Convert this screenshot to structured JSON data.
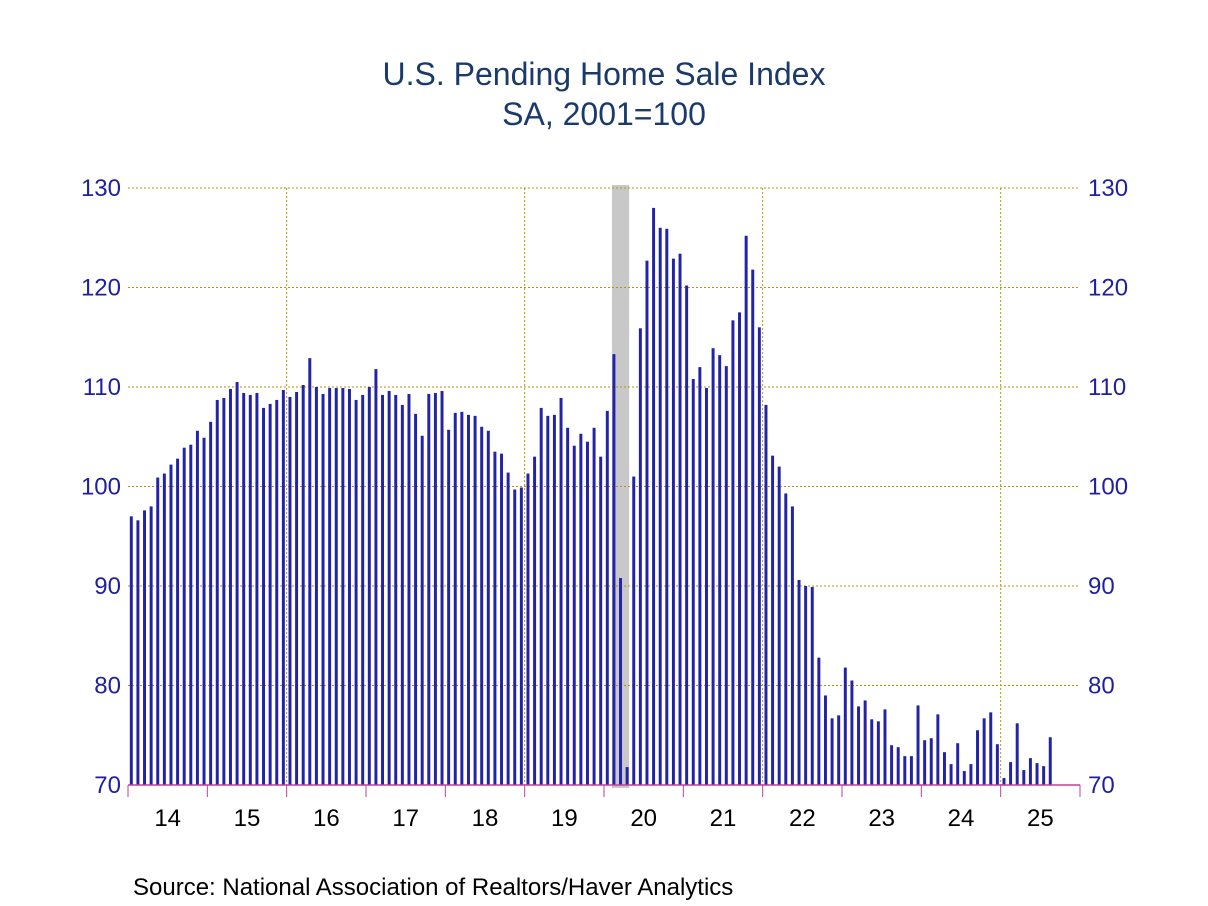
{
  "chart_data": {
    "type": "bar",
    "title": "U.S. Pending Home Sale Index",
    "subtitle": "SA, 2001=100",
    "source": "Source:  National Association of Realtors/Haver Analytics",
    "ylim": [
      70,
      130
    ],
    "y_ticks": [
      "70",
      "80",
      "90",
      "100",
      "110",
      "120",
      "130"
    ],
    "x_tick_labels": [
      "14",
      "15",
      "16",
      "17",
      "18",
      "19",
      "20",
      "21",
      "22",
      "23",
      "24",
      "25"
    ],
    "grid": true,
    "recession_shading": {
      "start": "2020-02",
      "end": "2020-04"
    },
    "series": [
      {
        "name": "Pending Home Sale Index",
        "start": "2014-01",
        "values": [
          97.0,
          96.6,
          97.6,
          98.0,
          100.9,
          101.3,
          102.2,
          102.8,
          103.9,
          104.2,
          105.6,
          104.9,
          106.5,
          108.7,
          108.9,
          109.8,
          110.5,
          109.4,
          109.2,
          109.4,
          107.9,
          108.3,
          108.7,
          109.7,
          109.0,
          109.5,
          110.2,
          112.9,
          110.0,
          109.3,
          109.9,
          109.9,
          109.9,
          109.8,
          108.7,
          109.2,
          110.0,
          111.8,
          109.2,
          109.6,
          109.2,
          108.2,
          109.3,
          107.3,
          105.1,
          109.3,
          109.4,
          109.6,
          105.7,
          107.4,
          107.5,
          107.2,
          107.1,
          106.0,
          105.6,
          103.5,
          103.3,
          101.4,
          99.7,
          99.9,
          101.3,
          103.0,
          107.9,
          107.1,
          107.2,
          108.9,
          105.9,
          104.1,
          105.3,
          104.5,
          105.9,
          103.0,
          107.6,
          113.3,
          90.8,
          71.8,
          101.0,
          115.9,
          122.7,
          128.0,
          126.0,
          125.9,
          122.9,
          123.4,
          120.2,
          110.8,
          112.0,
          109.9,
          113.9,
          113.2,
          112.1,
          116.7,
          117.5,
          125.2,
          121.8,
          116.0,
          108.2,
          103.1,
          102.0,
          99.3,
          98.0,
          90.6,
          90.0,
          89.9,
          82.8,
          79.0,
          76.7,
          77.0,
          81.8,
          80.5,
          77.9,
          78.5,
          76.6,
          76.4,
          77.6,
          74.0,
          73.8,
          72.9,
          72.9,
          78.0,
          74.5,
          74.7,
          77.1,
          73.3,
          72.1,
          74.2,
          71.4,
          72.1,
          75.5,
          76.7,
          77.3,
          74.1,
          70.7,
          72.3,
          76.2,
          71.5,
          72.7,
          72.2,
          71.9,
          74.8
        ]
      }
    ]
  }
}
